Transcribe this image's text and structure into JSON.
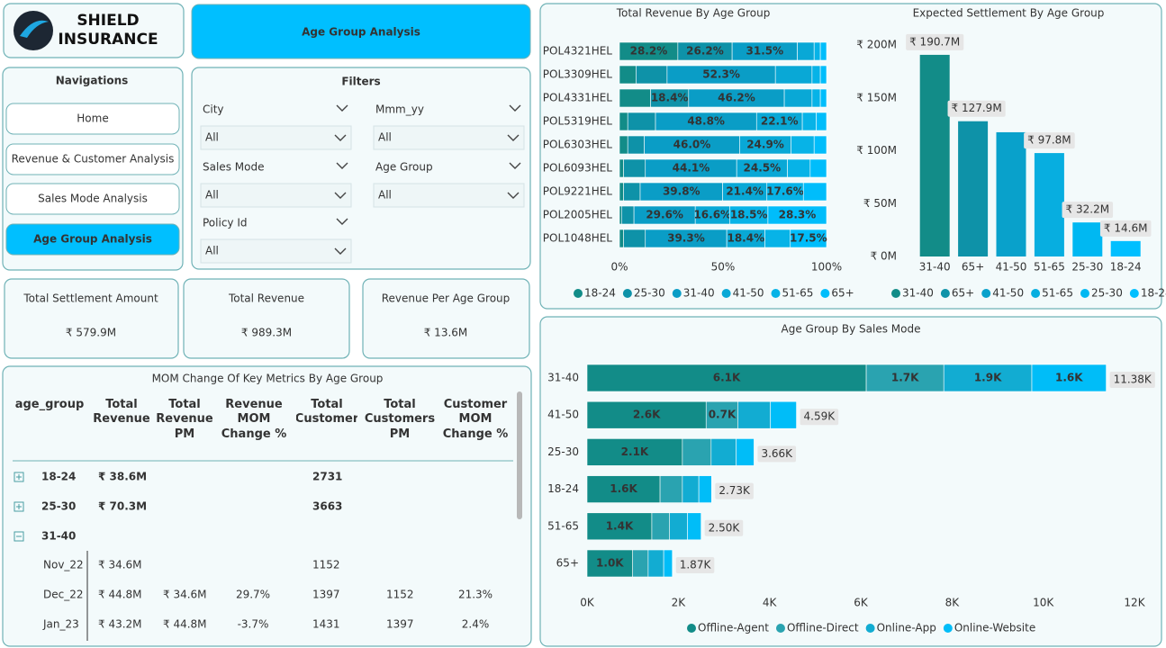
{
  "header": {
    "logo_text": "SHIELD INSURANCE",
    "page_title": "Age Group Analysis"
  },
  "navigation": {
    "title": "Navigations",
    "buttons": [
      {
        "label": "Home",
        "active": false
      },
      {
        "label": "Revenue & Customer Analysis",
        "active": false
      },
      {
        "label": "Sales Mode Analysis",
        "active": false
      },
      {
        "label": "Age Group Analysis",
        "active": true
      }
    ]
  },
  "filters": {
    "title": "Filters",
    "fields": [
      {
        "label": "City",
        "value": "All"
      },
      {
        "label": "Mmm_yy",
        "value": "All"
      },
      {
        "label": "Sales Mode",
        "value": "All"
      },
      {
        "label": "Age Group",
        "value": "All"
      },
      {
        "label": "Policy Id",
        "value": "All"
      }
    ]
  },
  "kpis": [
    {
      "label": "Total Settlement Amount",
      "value": "₹ 579.9M"
    },
    {
      "label": "Total Revenue",
      "value": "₹ 989.3M"
    },
    {
      "label": "Revenue Per Age Group",
      "value": "₹ 13.6M"
    }
  ],
  "table": {
    "title": "MOM Change Of Key Metrics By Age Group",
    "columns": [
      "age_group",
      "Total Revenue",
      "Total Revenue PM",
      "Revenue MOM Change %",
      "Total Customer",
      "Total Customers PM",
      "Customer MOM Change %"
    ],
    "rows": [
      {
        "toggle": "expand",
        "cells": [
          "18-24",
          "₹ 38.6M",
          null,
          null,
          "2731",
          null,
          null
        ]
      },
      {
        "toggle": "expand",
        "cells": [
          "25-30",
          "₹ 70.3M",
          null,
          null,
          "3663",
          null,
          null
        ]
      },
      {
        "toggle": "collapse",
        "cells": [
          "31-40",
          null,
          null,
          null,
          null,
          null,
          null
        ]
      },
      {
        "toggle": null,
        "cells": [
          "Nov_22",
          "₹ 34.6M",
          null,
          null,
          "1152",
          null,
          null
        ]
      },
      {
        "toggle": null,
        "cells": [
          "Dec_22",
          "₹ 44.8M",
          "₹ 34.6M",
          "29.7%",
          "1397",
          "1152",
          "21.3%"
        ]
      },
      {
        "toggle": null,
        "cells": [
          "Jan_23",
          "₹ 43.2M",
          "₹ 44.8M",
          "-3.7%",
          "1431",
          "1397",
          "2.4%"
        ]
      }
    ]
  },
  "chart_data": [
    {
      "type": "bar",
      "orientation": "horizontal",
      "stacking": "percent",
      "title": "Total Revenue By Age Group",
      "categories": [
        "POL4321HEL",
        "POL3309HEL",
        "POL4331HEL",
        "POL5319HEL",
        "POL6303HEL",
        "POL6093HEL",
        "POL9221HEL",
        "POL2005HEL",
        "POL1048HEL"
      ],
      "series": [
        {
          "name": "18-24",
          "color": "#128c88",
          "values": [
            28.2,
            8.0,
            15.0,
            4.0,
            4.0,
            2.0,
            2.0,
            1.0,
            2.0
          ],
          "value_labels": [
            "28.2%",
            null,
            null,
            null,
            null,
            null,
            null,
            null,
            null
          ]
        },
        {
          "name": "25-30",
          "color": "#0e92a8",
          "values": [
            26.2,
            15.0,
            18.4,
            13.4,
            8.0,
            10.5,
            8.0,
            6.0,
            10.5
          ],
          "value_labels": [
            "26.2%",
            null,
            "18.4%",
            null,
            null,
            null,
            null,
            null,
            null
          ]
        },
        {
          "name": "31-40",
          "color": "#0a9dc6",
          "values": [
            31.5,
            52.3,
            46.2,
            48.8,
            46.0,
            44.1,
            39.8,
            29.6,
            39.3
          ],
          "value_labels": [
            "31.5%",
            "52.3%",
            "46.2%",
            "48.8%",
            "46.0%",
            "44.1%",
            "39.8%",
            "29.6%",
            "39.3%"
          ]
        },
        {
          "name": "41-50",
          "color": "#09a8d6",
          "values": [
            8.1,
            17.7,
            13.4,
            22.1,
            24.9,
            24.5,
            21.4,
            16.6,
            18.4
          ],
          "value_labels": [
            null,
            null,
            null,
            "22.1%",
            "24.9%",
            "24.5%",
            "21.4%",
            "16.6%",
            "18.4%"
          ]
        },
        {
          "name": "51-65",
          "color": "#07b3e7",
          "values": [
            3.0,
            4.0,
            4.0,
            6.7,
            11.1,
            11.0,
            17.6,
            18.5,
            12.3
          ],
          "value_labels": [
            null,
            null,
            null,
            null,
            null,
            null,
            "17.6%",
            "18.5%",
            null
          ]
        },
        {
          "name": "65+",
          "color": "#00bdfb",
          "values": [
            3.0,
            3.0,
            3.0,
            5.0,
            6.0,
            7.9,
            11.2,
            28.3,
            17.5
          ],
          "value_labels": [
            null,
            null,
            null,
            null,
            null,
            null,
            null,
            "28.3%",
            "17.5%"
          ]
        }
      ],
      "xlim": [
        0,
        100
      ],
      "xticks": [
        {
          "value": 0,
          "label": "0%"
        },
        {
          "value": 50,
          "label": "50%"
        },
        {
          "value": 100,
          "label": "100%"
        }
      ],
      "legend": "bottom"
    },
    {
      "type": "bar",
      "orientation": "vertical",
      "title": "Expected Settlement By Age Group",
      "categories": [
        "31-40",
        "65+",
        "41-50",
        "51-65",
        "25-30",
        "18-24"
      ],
      "values": [
        190.7,
        127.9,
        117.5,
        97.8,
        32.2,
        14.6
      ],
      "value_labels": [
        "₹ 190.7M",
        "₹ 127.9M",
        null,
        "₹ 97.8M",
        "₹ 32.2M",
        "₹ 14.6M"
      ],
      "colors": [
        "#128c88",
        "#0e92a8",
        "#09a1cb",
        "#07aee0",
        "#00b8f2",
        "#00bfff"
      ],
      "ylim": [
        0,
        200
      ],
      "yticks": [
        {
          "value": 0,
          "label": "₹ 0M"
        },
        {
          "value": 50,
          "label": "₹ 50M"
        },
        {
          "value": 100,
          "label": "₹ 100M"
        },
        {
          "value": 150,
          "label": "₹ 150M"
        },
        {
          "value": 200,
          "label": "₹ 200M"
        }
      ],
      "legend": "bottom"
    },
    {
      "type": "bar",
      "orientation": "horizontal",
      "stacking": "stacked",
      "title": "Age Group By Sales Mode",
      "categories": [
        "31-40",
        "41-50",
        "25-30",
        "18-24",
        "51-65",
        "65+"
      ],
      "series": [
        {
          "name": "Offline-Agent",
          "color": "#128c88",
          "values": [
            6120,
            2610,
            2090,
            1600,
            1420,
            1000
          ],
          "value_labels": [
            "6.1K",
            "2.6K",
            "2.1K",
            "1.6K",
            "1.4K",
            "1.0K"
          ]
        },
        {
          "name": "Offline-Direct",
          "color": "#2aa3b0",
          "values": [
            1700,
            700,
            630,
            490,
            390,
            340
          ],
          "value_labels": [
            "1.7K",
            "0.7K",
            null,
            null,
            null,
            null
          ]
        },
        {
          "name": "Online-App",
          "color": "#12acd2",
          "values": [
            1930,
            710,
            550,
            360,
            390,
            340
          ],
          "value_labels": [
            "1.9K",
            null,
            null,
            null,
            null,
            null
          ]
        },
        {
          "name": "Online-Website",
          "color": "#00bdf8",
          "values": [
            1630,
            570,
            390,
            280,
            300,
            190
          ],
          "value_labels": [
            "1.6K",
            null,
            null,
            null,
            null,
            null
          ]
        }
      ],
      "totals": [
        11380,
        4590,
        3660,
        2730,
        2500,
        1870
      ],
      "total_labels": [
        "11.38K",
        "4.59K",
        "3.66K",
        "2.73K",
        "2.50K",
        "1.87K"
      ],
      "xlim": [
        0,
        12000
      ],
      "xticks": [
        {
          "value": 0,
          "label": "0K"
        },
        {
          "value": 2000,
          "label": "2K"
        },
        {
          "value": 4000,
          "label": "4K"
        },
        {
          "value": 6000,
          "label": "6K"
        },
        {
          "value": 8000,
          "label": "8K"
        },
        {
          "value": 10000,
          "label": "10K"
        },
        {
          "value": 12000,
          "label": "12K"
        }
      ],
      "legend": "bottom"
    }
  ]
}
